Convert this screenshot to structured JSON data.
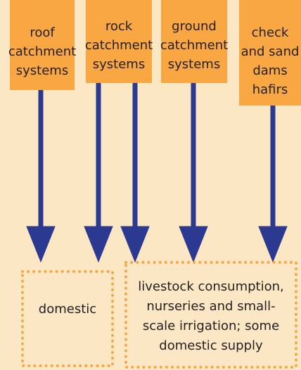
{
  "sources": [
    {
      "lines": [
        "roof",
        "catchment",
        "systems"
      ]
    },
    {
      "lines": [
        "rock",
        "catchment",
        "systems"
      ]
    },
    {
      "lines": [
        "ground",
        "catchment",
        "systems"
      ]
    },
    {
      "lines": [
        "check",
        "and sand",
        "dams",
        "hafirs"
      ]
    }
  ],
  "targets": [
    {
      "lines": [
        "domestic"
      ]
    },
    {
      "lines": [
        "livestock consumption,",
        "nurseries and small-",
        "scale irrigation; some",
        "domestic supply"
      ]
    }
  ]
}
